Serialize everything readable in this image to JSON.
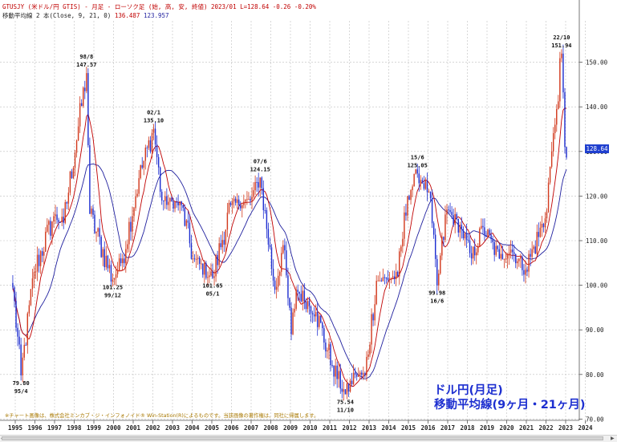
{
  "header": {
    "line1": "GTUSJY (米ドル/円 GTIS) - 月足 - ローソク足 (始, 高, 安, 終値)  2023/01 L=128.64 -0.26  -0.20%",
    "line2_label": "移動平均線 2 本(Close, 9, 21, 0)",
    "ma9_value": "136.487",
    "ma21_value": "123.957"
  },
  "current_price_label": "128.64",
  "title_line1": "ドル円(月足)",
  "title_line2": "移動平均線(9ヶ月・21ヶ月)",
  "notice": "※チャート画像は、株式会社ミンカブ・ジ・インフォノイド® Win-Station(R)によるものです。当該画像の著作権は、同社に帰属します。",
  "colors": {
    "up": "#d23a1e",
    "down": "#1f2fd0",
    "ma9": "#c00000",
    "ma21": "#1f1f9e",
    "grid": "#bfbfbf"
  },
  "chart_data": {
    "type": "candlestick",
    "title": "ドル円(月足) 移動平均線(9ヶ月・21ヶ月)",
    "ylim": [
      70,
      160
    ],
    "y_ticks": [
      "70.00",
      "80.00",
      "90.00",
      "100.00",
      "110.00",
      "120.00",
      "130.00",
      "140.00",
      "150.00"
    ],
    "x_ticks": [
      "1995",
      "1996",
      "1997",
      "1998",
      "1999",
      "2000",
      "2001",
      "2002",
      "2003",
      "2004",
      "2005",
      "2006",
      "2007",
      "2008",
      "2009",
      "2010",
      "2011",
      "2012",
      "2013",
      "2014",
      "2015",
      "2016",
      "2017",
      "2018",
      "2019",
      "2020",
      "2021",
      "2022",
      "2023",
      "2024"
    ],
    "x_range": [
      "1994/11",
      "2024/12"
    ],
    "grid": true,
    "series": [
      {
        "name": "9ヶ月",
        "type": "line"
      },
      {
        "name": "21ヶ月",
        "type": "line"
      }
    ],
    "anchors": [
      {
        "date": "1994/11",
        "price": 99.5
      },
      {
        "date": "1995/4",
        "price": 79.8
      },
      {
        "date": "1995/12",
        "price": 103.0
      },
      {
        "date": "1996/12",
        "price": 115.5
      },
      {
        "date": "1997/6",
        "price": 114.0
      },
      {
        "date": "1998/8",
        "price": 147.57
      },
      {
        "date": "1998/10",
        "price": 116.0
      },
      {
        "date": "1999/12",
        "price": 101.25
      },
      {
        "date": "2000/6",
        "price": 106.0
      },
      {
        "date": "2001/4",
        "price": 124.0
      },
      {
        "date": "2002/1",
        "price": 135.1
      },
      {
        "date": "2002/6",
        "price": 119.0
      },
      {
        "date": "2003/6",
        "price": 118.0
      },
      {
        "date": "2004/1",
        "price": 106.0
      },
      {
        "date": "2005/1",
        "price": 101.65
      },
      {
        "date": "2005/12",
        "price": 118.0
      },
      {
        "date": "2006/12",
        "price": 119.0
      },
      {
        "date": "2007/6",
        "price": 124.15
      },
      {
        "date": "2008/3",
        "price": 99.0
      },
      {
        "date": "2008/8",
        "price": 109.0
      },
      {
        "date": "2009/1",
        "price": 89.0
      },
      {
        "date": "2009/4",
        "price": 99.0
      },
      {
        "date": "2010/4",
        "price": 94.0
      },
      {
        "date": "2011/2",
        "price": 82.0
      },
      {
        "date": "2011/10",
        "price": 75.54
      },
      {
        "date": "2012/4",
        "price": 80.0
      },
      {
        "date": "2012/10",
        "price": 79.8
      },
      {
        "date": "2013/5",
        "price": 101.0
      },
      {
        "date": "2014/6",
        "price": 102.0
      },
      {
        "date": "2014/12",
        "price": 120.0
      },
      {
        "date": "2015/6",
        "price": 125.05
      },
      {
        "date": "2016/1",
        "price": 121.0
      },
      {
        "date": "2016/6",
        "price": 99.98
      },
      {
        "date": "2016/12",
        "price": 117.0
      },
      {
        "date": "2017/9",
        "price": 112.5
      },
      {
        "date": "2018/3",
        "price": 106.0
      },
      {
        "date": "2018/10",
        "price": 113.0
      },
      {
        "date": "2019/8",
        "price": 106.0
      },
      {
        "date": "2020/3",
        "price": 108.0
      },
      {
        "date": "2020/12",
        "price": 103.5
      },
      {
        "date": "2021/12",
        "price": 115.0
      },
      {
        "date": "2022/4",
        "price": 130.0
      },
      {
        "date": "2022/6",
        "price": 136.0
      },
      {
        "date": "2022/10",
        "price": 151.94
      },
      {
        "date": "2022/12",
        "price": 131.0
      },
      {
        "date": "2023/1",
        "price": 128.64
      }
    ],
    "annotations": [
      {
        "top": "79.80",
        "bottom": "95/4",
        "date": "1995/4",
        "price": 79.8,
        "pos": "below"
      },
      {
        "top": "98/8",
        "bottom": "147.57",
        "date": "1998/8",
        "price": 147.57,
        "pos": "above"
      },
      {
        "top": "101.25",
        "bottom": "99/12",
        "date": "1999/12",
        "price": 101.25,
        "pos": "below"
      },
      {
        "top": "02/1",
        "bottom": "135.10",
        "date": "2002/1",
        "price": 135.1,
        "pos": "above"
      },
      {
        "top": "101.65",
        "bottom": "05/1",
        "date": "2005/1",
        "price": 101.65,
        "pos": "below"
      },
      {
        "top": "07/6",
        "bottom": "124.15",
        "date": "2007/6",
        "price": 124.15,
        "pos": "above"
      },
      {
        "top": "75.54",
        "bottom": "11/10",
        "date": "2011/10",
        "price": 75.54,
        "pos": "below"
      },
      {
        "top": "15/6",
        "bottom": "125.05",
        "date": "2015/6",
        "price": 125.05,
        "pos": "above"
      },
      {
        "top": "99.98",
        "bottom": "16/6",
        "date": "2016/6",
        "price": 99.98,
        "pos": "below"
      },
      {
        "top": "22/10",
        "bottom": "151.94",
        "date": "2022/10",
        "price": 151.94,
        "pos": "above"
      }
    ]
  }
}
